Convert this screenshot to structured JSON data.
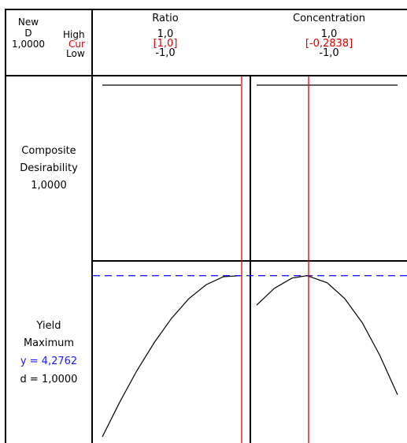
{
  "header": {
    "new_label": "New",
    "d_label": "D",
    "d_value": "1,0000",
    "high_label": "High",
    "cur_label": "Cur",
    "low_label": "Low"
  },
  "factors": [
    {
      "name": "Ratio",
      "high": "1,0",
      "current": "[1,0]",
      "low": "-1,0"
    },
    {
      "name": "Concentration",
      "high": "1,0",
      "current": "[-0,2838]",
      "low": "-1,0"
    }
  ],
  "rows": {
    "composite": {
      "line1": "Composite",
      "line2": "Desirability",
      "value": "1,0000"
    },
    "yield": {
      "line1": "Yield",
      "line2": "Maximum",
      "y_text": "y = 4,2762",
      "d_text": "d = 1,0000"
    }
  },
  "colors": {
    "current_line": "#e00000",
    "optimum_line": "#1a1aff",
    "curve": "#000000",
    "grid": "#000000"
  },
  "chart_data": {
    "type": "line",
    "title": "",
    "xlim": [
      -1.0,
      1.0
    ],
    "panels": [
      {
        "row": "Composite Desirability",
        "column": "Ratio",
        "current_x": 1.0,
        "series": [
          {
            "x": [
              -1.0,
              1.0
            ],
            "y": [
              1.0,
              1.0
            ]
          }
        ],
        "ylim": [
          0,
          1.0
        ]
      },
      {
        "row": "Composite Desirability",
        "column": "Concentration",
        "current_x": -0.2838,
        "series": [
          {
            "x": [
              -1.0,
              1.0
            ],
            "y": [
              1.0,
              1.0
            ]
          }
        ],
        "ylim": [
          0,
          1.0
        ]
      },
      {
        "row": "Yield Maximum",
        "column": "Ratio",
        "current_x": 1.0,
        "optimum_y": 4.2762,
        "series": [
          {
            "x": [
              -1.0,
              -0.75,
              -0.5,
              -0.25,
              0.0,
              0.25,
              0.5,
              0.75,
              1.0
            ],
            "y": [
              2.55,
              2.92,
              3.26,
              3.56,
              3.82,
              4.03,
              4.18,
              4.265,
              4.2762
            ]
          }
        ],
        "ylim": [
          2.5,
          4.4
        ]
      },
      {
        "row": "Yield Maximum",
        "column": "Concentration",
        "current_x": -0.2838,
        "optimum_y": 4.2762,
        "series": [
          {
            "x": [
              -1.0,
              -0.75,
              -0.5,
              -0.2838,
              0.0,
              0.25,
              0.5,
              0.75,
              1.0
            ],
            "y": [
              3.96,
              4.14,
              4.25,
              4.2762,
              4.2,
              4.03,
              3.77,
              3.42,
              3.0
            ]
          }
        ],
        "ylim": [
          2.5,
          4.4
        ]
      }
    ]
  }
}
